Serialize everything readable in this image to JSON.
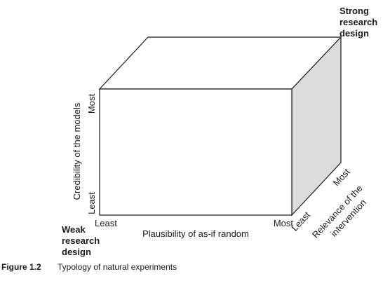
{
  "diagram": {
    "front_face_color": "#ffffff",
    "side_face_color": "#dcdcdc",
    "top_face_color": "#ffffff",
    "stroke_color": "#1a1a1a",
    "corners": {
      "strong": [
        "Strong",
        "research",
        "design"
      ],
      "weak": [
        "Weak",
        "research",
        "design"
      ]
    },
    "x_axis": {
      "label": "Plausibility of as-if random",
      "low": "Least",
      "high": "Most"
    },
    "y_axis": {
      "label": "Credibility of the models",
      "low": "Least",
      "high": "Most"
    },
    "z_axis": {
      "label_lines": [
        "Relevance of the",
        "intervention"
      ],
      "low": "Least",
      "high": "Most"
    }
  },
  "caption": {
    "number": "Figure 1.2",
    "text": "Typology of natural experiments"
  }
}
